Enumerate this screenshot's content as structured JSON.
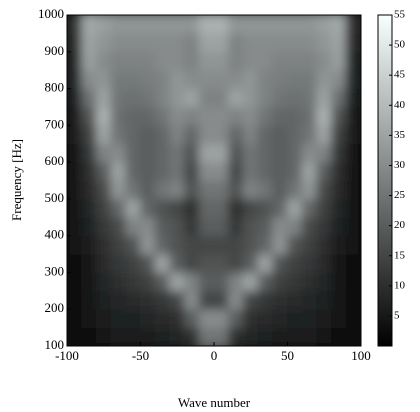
{
  "chart_data": {
    "type": "heatmap",
    "x_label": "Wave number",
    "y_label": "Frequency [Hz]",
    "x": [
      -95,
      -85,
      -75,
      -65,
      -55,
      -45,
      -35,
      -25,
      -15,
      -5,
      5,
      15,
      25,
      35,
      45,
      55,
      65,
      75,
      85,
      95
    ],
    "y": [
      125,
      175,
      225,
      275,
      325,
      375,
      425,
      475,
      525,
      575,
      625,
      675,
      725,
      775,
      825,
      875,
      925,
      975
    ],
    "z": [
      [
        3,
        3,
        5,
        6,
        6,
        6,
        7,
        8,
        10,
        25,
        25,
        10,
        8,
        7,
        6,
        6,
        6,
        5,
        3,
        3
      ],
      [
        3,
        4,
        6,
        7,
        7,
        8,
        9,
        10,
        20,
        30,
        30,
        20,
        10,
        9,
        8,
        7,
        7,
        6,
        4,
        3
      ],
      [
        3,
        4,
        7,
        8,
        9,
        10,
        12,
        15,
        30,
        15,
        15,
        30,
        15,
        12,
        10,
        9,
        8,
        7,
        4,
        3
      ],
      [
        3,
        5,
        8,
        10,
        12,
        14,
        20,
        35,
        28,
        20,
        20,
        28,
        35,
        20,
        14,
        12,
        10,
        8,
        5,
        3
      ],
      [
        3,
        5,
        9,
        12,
        14,
        18,
        35,
        20,
        15,
        18,
        18,
        15,
        20,
        35,
        18,
        14,
        12,
        9,
        5,
        3
      ],
      [
        4,
        6,
        10,
        14,
        18,
        32,
        22,
        18,
        15,
        15,
        15,
        15,
        18,
        22,
        32,
        18,
        14,
        10,
        6,
        4
      ],
      [
        4,
        7,
        12,
        16,
        28,
        30,
        20,
        18,
        12,
        20,
        20,
        12,
        18,
        20,
        30,
        28,
        16,
        12,
        7,
        4
      ],
      [
        4,
        8,
        14,
        22,
        35,
        22,
        18,
        15,
        10,
        22,
        22,
        10,
        15,
        18,
        22,
        35,
        22,
        14,
        8,
        4
      ],
      [
        5,
        9,
        16,
        32,
        25,
        20,
        25,
        28,
        18,
        25,
        25,
        18,
        28,
        25,
        20,
        25,
        32,
        16,
        9,
        5
      ],
      [
        5,
        10,
        20,
        35,
        22,
        20,
        22,
        25,
        15,
        30,
        30,
        15,
        25,
        22,
        20,
        22,
        35,
        20,
        10,
        5
      ],
      [
        5,
        12,
        28,
        30,
        22,
        20,
        22,
        25,
        18,
        35,
        35,
        18,
        25,
        22,
        20,
        22,
        30,
        28,
        12,
        5
      ],
      [
        6,
        14,
        35,
        25,
        22,
        20,
        22,
        28,
        22,
        30,
        30,
        22,
        28,
        22,
        20,
        22,
        25,
        35,
        14,
        6
      ],
      [
        6,
        18,
        38,
        24,
        22,
        22,
        25,
        30,
        28,
        30,
        30,
        28,
        30,
        25,
        22,
        22,
        24,
        38,
        18,
        6
      ],
      [
        7,
        24,
        35,
        25,
        24,
        25,
        28,
        32,
        35,
        28,
        28,
        35,
        32,
        28,
        25,
        24,
        25,
        35,
        24,
        7
      ],
      [
        8,
        30,
        32,
        26,
        26,
        27,
        28,
        32,
        30,
        30,
        30,
        30,
        32,
        28,
        27,
        26,
        26,
        32,
        30,
        8
      ],
      [
        8,
        34,
        30,
        28,
        28,
        28,
        30,
        30,
        28,
        32,
        32,
        28,
        30,
        30,
        28,
        28,
        28,
        30,
        34,
        8
      ],
      [
        9,
        35,
        32,
        30,
        30,
        30,
        30,
        30,
        28,
        35,
        35,
        28,
        30,
        30,
        30,
        30,
        30,
        32,
        35,
        9
      ],
      [
        10,
        36,
        34,
        32,
        32,
        32,
        32,
        32,
        32,
        38,
        38,
        32,
        32,
        32,
        32,
        32,
        32,
        34,
        36,
        10
      ]
    ],
    "xlim": [
      -100,
      100
    ],
    "xticks": [
      -100,
      -50,
      0,
      50,
      100
    ],
    "ylim": [
      100,
      1000
    ],
    "yticks": [
      100,
      200,
      300,
      400,
      500,
      600,
      700,
      800,
      900,
      1000
    ],
    "colormap": "gray",
    "clim": [
      0,
      55
    ],
    "cticks": [
      5,
      10,
      15,
      20,
      25,
      30,
      35,
      40,
      45,
      50,
      55
    ]
  }
}
